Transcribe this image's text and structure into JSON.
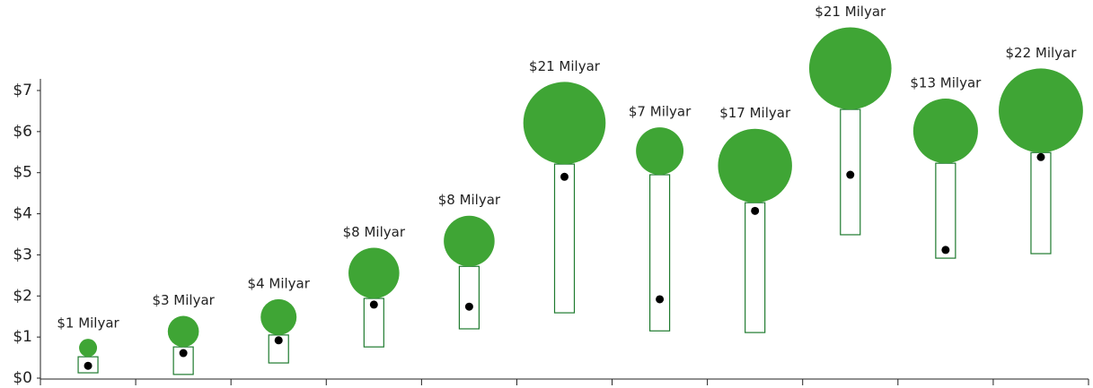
{
  "chart_data": {
    "type": "bubble-range",
    "low": [
      0.13,
      0.09,
      0.37,
      0.76,
      1.2,
      1.59,
      1.15,
      1.11,
      3.49,
      2.92,
      3.03
    ],
    "high": [
      0.52,
      0.76,
      1.05,
      1.94,
      2.72,
      5.21,
      4.95,
      4.27,
      6.54,
      5.23,
      5.49
    ],
    "values": [
      0.3,
      0.61,
      0.92,
      1.79,
      1.74,
      4.9,
      1.92,
      4.07,
      4.95,
      3.12,
      5.38
    ],
    "sizes": [
      1,
      3,
      4,
      8,
      8,
      21,
      7,
      17,
      21,
      13,
      22
    ],
    "value_labels": [
      "$1 Milyar",
      "$3 Milyar",
      "$4 Milyar",
      "$8 Milyar",
      "$8 Milyar",
      "$21 Milyar",
      "$7 Milyar",
      "$17 Milyar",
      "$21 Milyar",
      "$13 Milyar",
      "$22 Milyar"
    ],
    "bubble_color": "#3fa535",
    "bar_color": "#1e7a2e",
    "dot_color": "#000000",
    "ylim": [
      0,
      7
    ],
    "yticks": [
      {
        "value": 0,
        "label": "$0"
      },
      {
        "value": 1,
        "label": "$1"
      },
      {
        "value": 2,
        "label": "$2"
      },
      {
        "value": 3,
        "label": "$3"
      },
      {
        "value": 4,
        "label": "$4"
      },
      {
        "value": 5,
        "label": "$5"
      },
      {
        "value": 6,
        "label": "$6"
      },
      {
        "value": 7,
        "label": "$7"
      }
    ]
  }
}
